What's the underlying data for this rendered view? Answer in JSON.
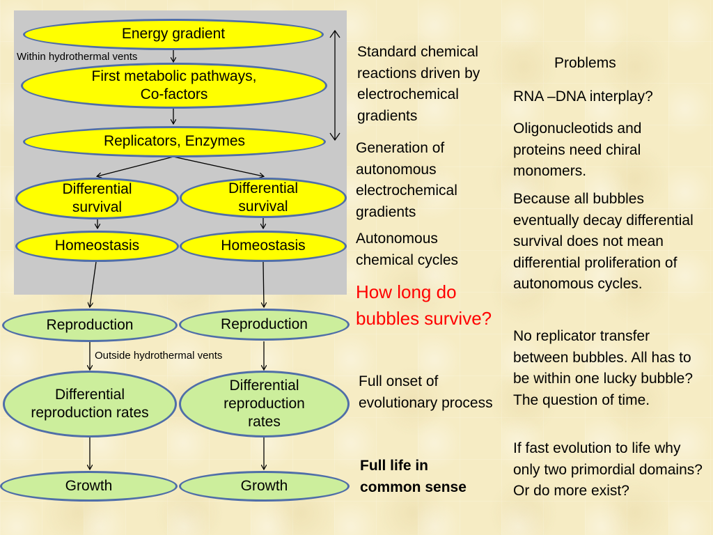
{
  "diagram": {
    "energy_gradient": "Energy gradient",
    "within_vents": "Within hydrothermal vents",
    "first_metabolic": "First metabolic pathways, Co-factors",
    "replicators": "Replicators, Enzymes",
    "diff_survival_left": "Differential survival",
    "diff_survival_right": "Differential survival",
    "homeostasis_left": "Homeostasis",
    "homeostasis_right": "Homeostasis",
    "reproduction_left": "Reproduction",
    "reproduction_right": "Reproduction",
    "outside_vents": "Outside hydrothermal vents",
    "diff_repro_left": "Differential reproduction rates",
    "diff_repro_right": "Differential reproduction rates",
    "growth_left": "Growth",
    "growth_right": "Growth"
  },
  "middle_notes": {
    "standard_reactions": "Standard chemical reactions driven by electrochemical gradients",
    "generation": "Generation of autonomous electrochemical gradients",
    "autonomous_cycles": "Autonomous chemical cycles",
    "how_long": "How long do bubbles survive?",
    "full_onset": "Full onset of evolutionary process",
    "full_life": "Full life in common sense"
  },
  "problems": {
    "title": "Problems",
    "rna_dna": "RNA –DNA interplay?",
    "chiral": "Oligonucleotids and proteins need chiral monomers.",
    "decay": "Because all bubbles eventually decay differential survival does not mean differential proliferation of autonomous cycles.",
    "transfer": "No replicator transfer between bubbles. All has to be within one lucky bubble? The question of time.",
    "fast_evolution": "If fast evolution to life why only two primordial domains? Or do more exist?"
  },
  "colors": {
    "yellow_node": "#ffff00",
    "green_node": "#ccee9c",
    "node_border": "#4f6ea8",
    "panel": "#c9c9c9",
    "highlight": "#ff0000"
  }
}
